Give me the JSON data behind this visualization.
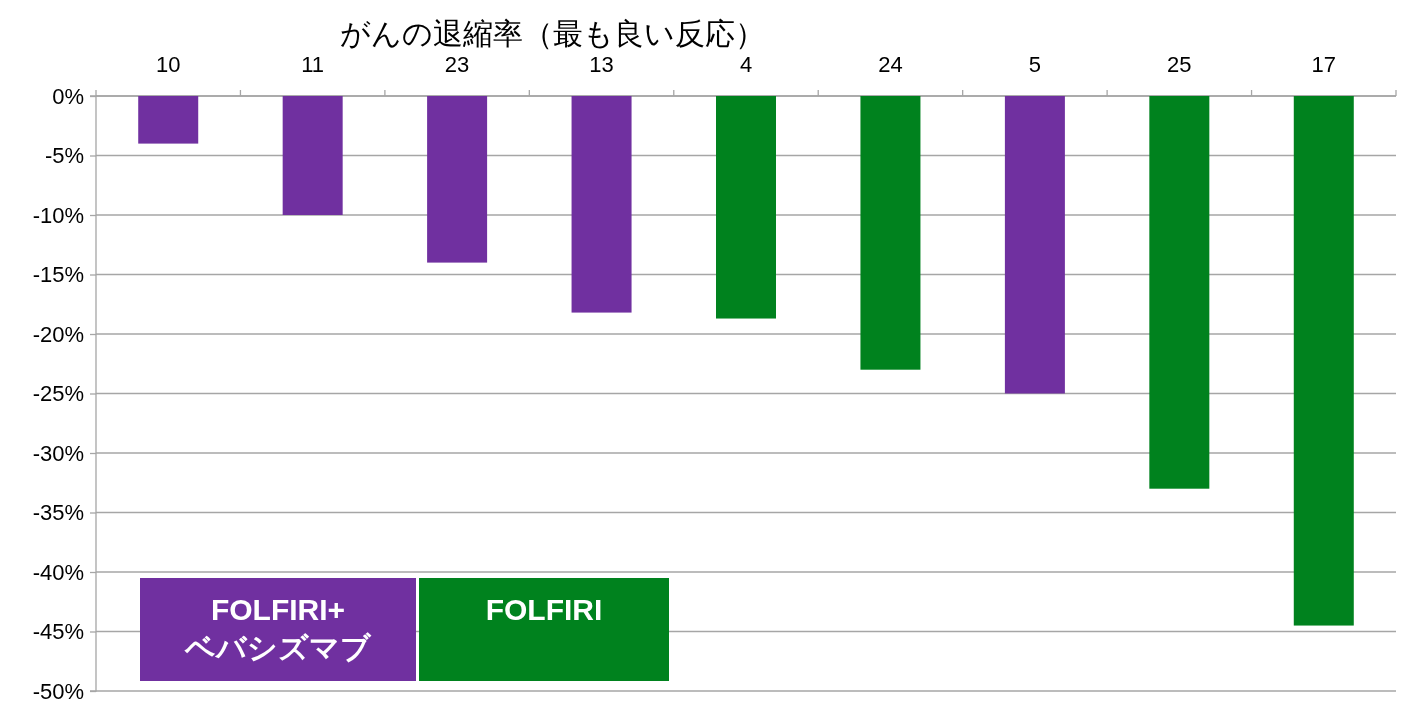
{
  "chart_data": {
    "type": "bar",
    "title": "がんの退縮率（最も良い反応）",
    "categories": [
      "10",
      "11",
      "23",
      "13",
      "4",
      "24",
      "5",
      "25",
      "17"
    ],
    "series": [
      {
        "name": "FOLFIRI+ベバシズマブ",
        "color": "#7030a0",
        "values": [
          -4,
          -10,
          -14,
          -18.2,
          null,
          null,
          -25,
          null,
          null
        ]
      },
      {
        "name": "FOLFIRI",
        "color": "#00821e",
        "values": [
          null,
          null,
          null,
          null,
          -18.7,
          -23,
          null,
          -33,
          -44.5
        ]
      }
    ],
    "ylim": [
      -50,
      0
    ],
    "yticks": [
      {
        "value": 0,
        "label": "0%"
      },
      {
        "value": -5,
        "label": "-5%"
      },
      {
        "value": -10,
        "label": "-10%"
      },
      {
        "value": -15,
        "label": "-15%"
      },
      {
        "value": -20,
        "label": "-20%"
      },
      {
        "value": -25,
        "label": "-25%"
      },
      {
        "value": -30,
        "label": "-30%"
      },
      {
        "value": -35,
        "label": "-35%"
      },
      {
        "value": -40,
        "label": "-40%"
      },
      {
        "value": -45,
        "label": "-45%"
      },
      {
        "value": -50,
        "label": "-50%"
      }
    ],
    "grid": "y",
    "legend": "bottom left"
  }
}
